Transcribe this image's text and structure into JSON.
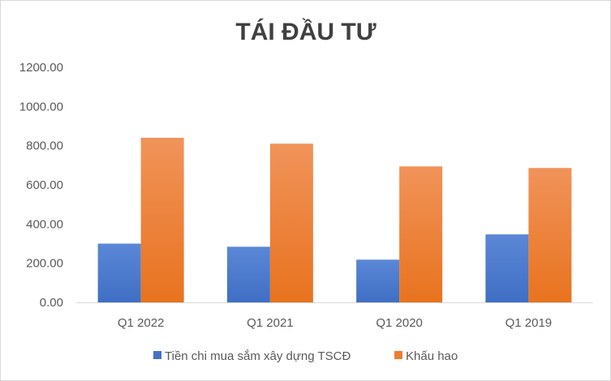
{
  "chart_data": {
    "type": "bar",
    "title": "TÁI ĐẦU TƯ",
    "xlabel": "",
    "ylabel": "",
    "categories": [
      "Q1 2022",
      "Q1 2021",
      "Q1 2020",
      "Q1 2019"
    ],
    "series": [
      {
        "name": "Tiền chi mua sắm xây dựng TSCĐ",
        "color": "#4472c4",
        "values": [
          300,
          284,
          218,
          347
        ]
      },
      {
        "name": "Khấu hao",
        "color": "#ed7d31",
        "values": [
          840,
          810,
          694,
          686
        ]
      }
    ],
    "ylim": [
      0,
      1200
    ],
    "yticks": [
      "0.00",
      "200.00",
      "400.00",
      "600.00",
      "800.00",
      "1000.00",
      "1200.00"
    ],
    "grid": false,
    "legend": "bottom"
  }
}
